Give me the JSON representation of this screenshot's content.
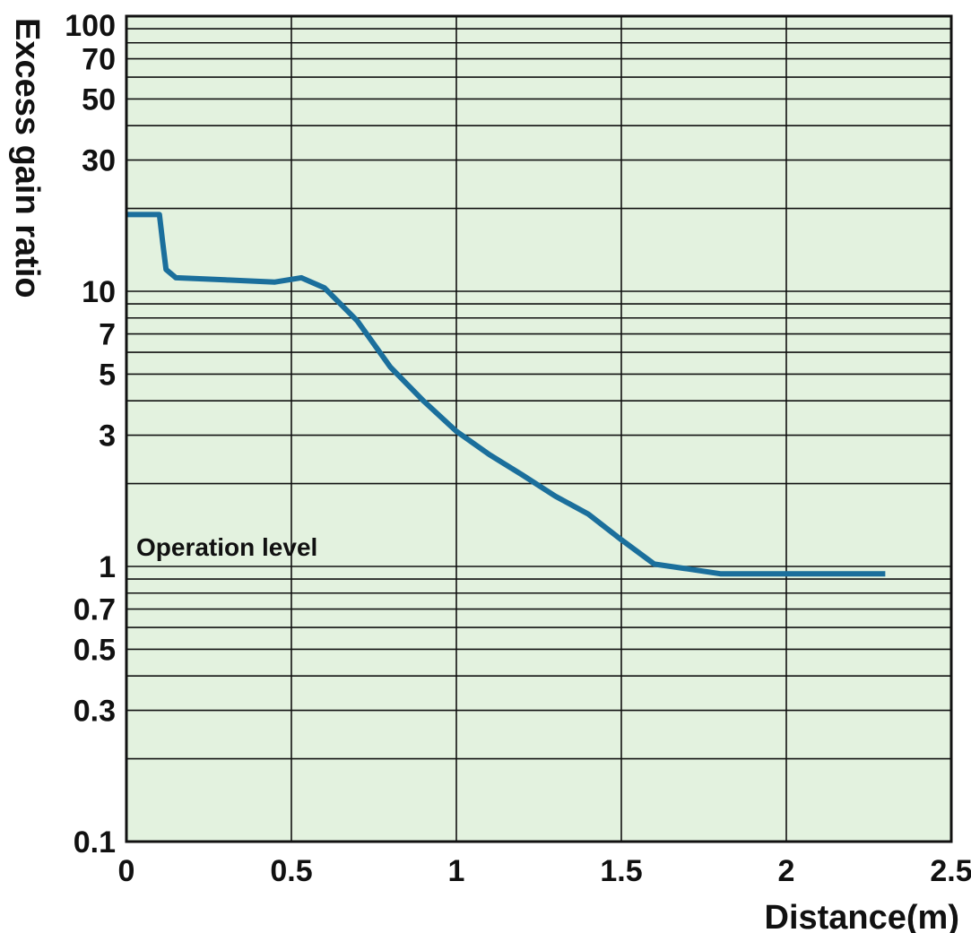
{
  "chart_data": {
    "type": "line",
    "xlabel": "Distance(m)",
    "ylabel": "Excess gain ratio",
    "xlim": [
      0,
      2.5
    ],
    "ylim": [
      0.1,
      100
    ],
    "y_scale": "log",
    "grid": true,
    "x_ticks": [
      "0",
      "0.5",
      "1",
      "1.5",
      "2",
      "2.5"
    ],
    "y_ticks": [
      "100",
      "70",
      "50",
      "30",
      "10",
      "7",
      "5",
      "3",
      "1",
      "0.7",
      "0.5",
      "0.3",
      "0.1"
    ],
    "annotation": "Operation level",
    "colors": {
      "plot_bg": "#e3f2df",
      "line": "#1b6f9c",
      "grid": "#111111"
    },
    "series": [
      {
        "x": [
          0,
          0.1,
          0.11,
          0.12,
          0.15,
          0.3,
          0.45,
          0.53,
          0.6,
          0.7,
          0.8,
          0.9,
          1.0,
          1.1,
          1.2,
          1.3,
          1.4,
          1.5,
          1.6,
          1.7,
          1.8,
          2.0,
          2.2,
          2.3
        ],
        "y": [
          19,
          19,
          15,
          12,
          11.2,
          11,
          10.8,
          11.2,
          10.3,
          7.8,
          5.3,
          4.0,
          3.1,
          2.55,
          2.15,
          1.8,
          1.55,
          1.25,
          1.02,
          0.98,
          0.94,
          0.94,
          0.94,
          0.94
        ]
      }
    ]
  }
}
